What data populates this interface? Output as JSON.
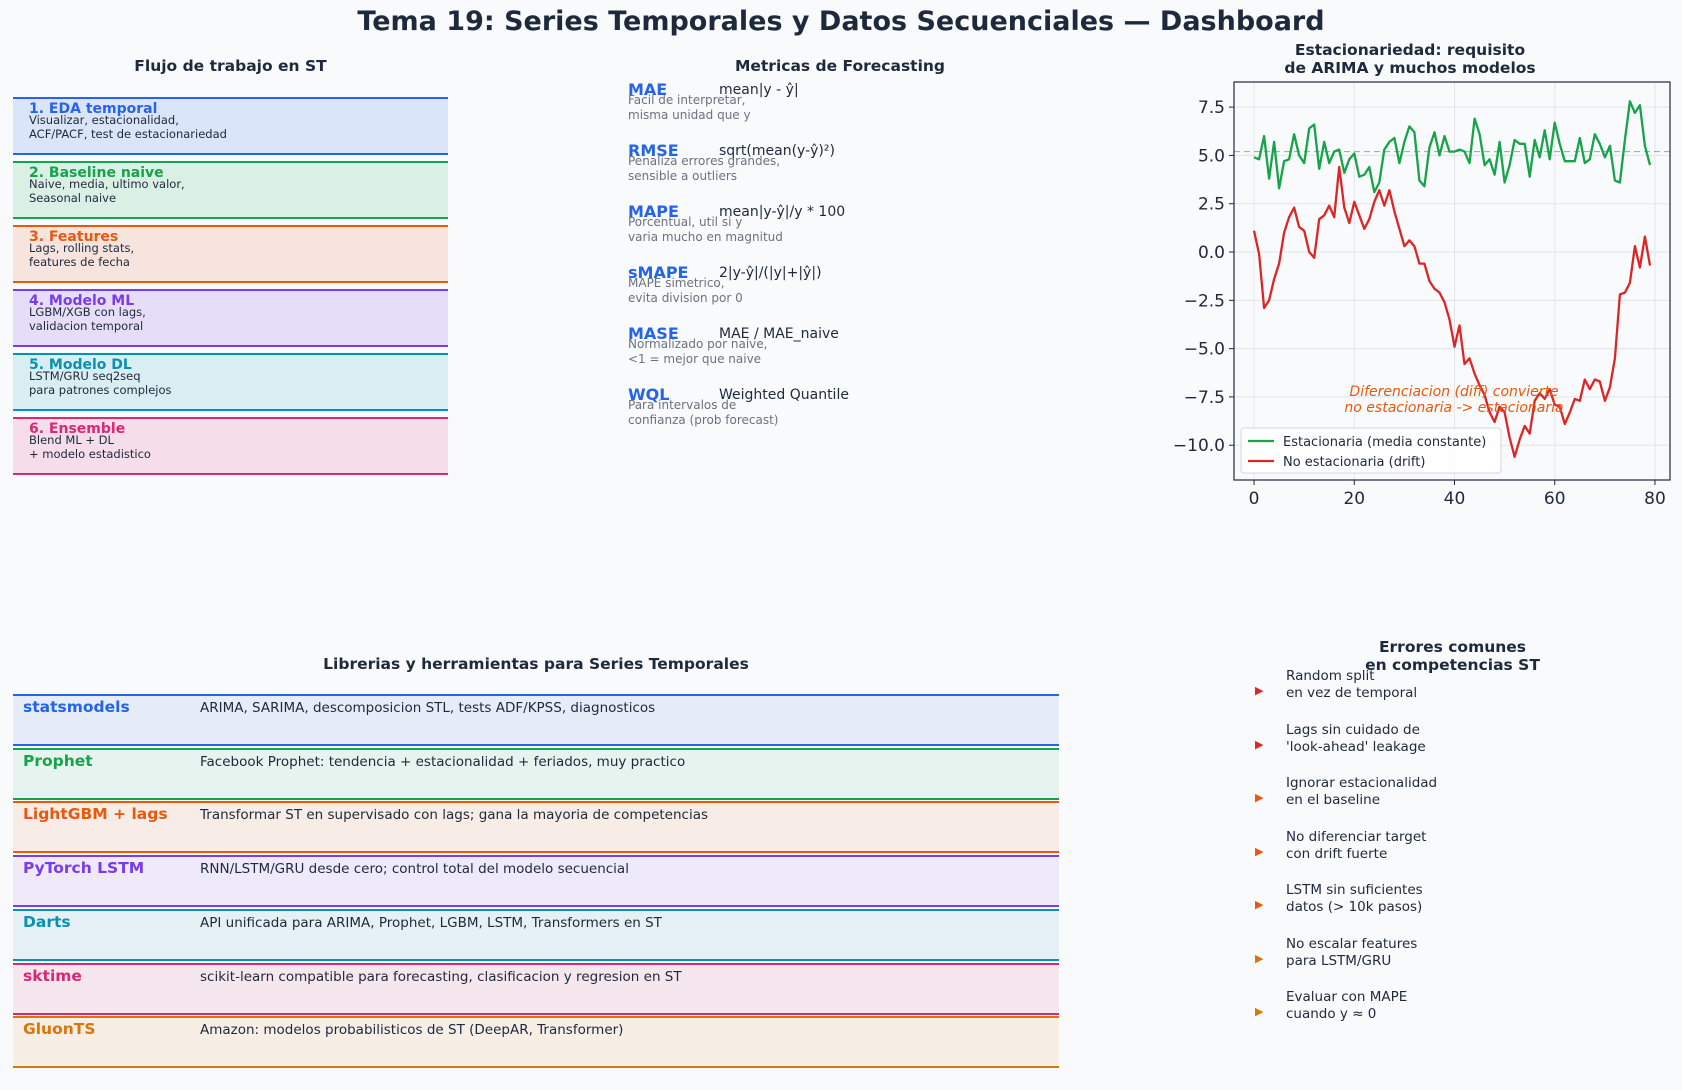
{
  "title": "Tema 19: Series Temporales y Datos Secuenciales — Dashboard",
  "workflow": {
    "title": "Flujo de trabajo en ST",
    "steps": [
      {
        "title": "1. EDA temporal",
        "desc": "Visualizar, estacionalidad,\nACF/PACF, test de estacionariedad",
        "color": "#2563eb",
        "bg": "#dbe5f9"
      },
      {
        "title": "2. Baseline naive",
        "desc": "Naive, media, ultimo valor,\nSeasonal naive",
        "color": "#16a34a",
        "bg": "#dbf0e5"
      },
      {
        "title": "3. Features",
        "desc": "Lags, rolling stats,\nfeatures de fecha",
        "color": "#ea580c",
        "bg": "#f8e4de"
      },
      {
        "title": "4. Modelo ML",
        "desc": "LGBM/XGB con lags,\nvalidacion temporal",
        "color": "#7c3aed",
        "bg": "#e6def9"
      },
      {
        "title": "5. Modelo DL",
        "desc": "LSTM/GRU seq2seq\npara patrones complejos",
        "color": "#0891b2",
        "bg": "#d9eef2"
      },
      {
        "title": "6. Ensemble",
        "desc": "Blend ML + DL\n+ modelo estadistico",
        "color": "#db2777",
        "bg": "#f5dde9"
      }
    ]
  },
  "metrics": {
    "title": "Metricas de Forecasting",
    "items": [
      {
        "name": "MAE",
        "formula": "mean|y - ŷ|",
        "desc": "Facil de interpretar,\nmisma unidad que y"
      },
      {
        "name": "RMSE",
        "formula": "sqrt(mean(y-ŷ)²)",
        "desc": "Penaliza errores grandes,\nsensible a outliers"
      },
      {
        "name": "MAPE",
        "formula": "mean|y-ŷ|/y * 100",
        "desc": "Porcentual, util si y\nvaria mucho en magnitud"
      },
      {
        "name": "sMAPE",
        "formula": "2|y-ŷ|/(|y|+|ŷ|)",
        "desc": "MAPE simetrico,\nevita division por 0"
      },
      {
        "name": "MASE",
        "formula": "MAE / MAE_naive",
        "desc": "Normalizado por naive,\n<1 = mejor que naive"
      },
      {
        "name": "WQL",
        "formula": "Weighted Quantile",
        "desc": "Para intervalos de\nconfianza (prob forecast)"
      }
    ]
  },
  "chart_data": {
    "type": "line",
    "title": "Estacionariedad: requisito\nde ARIMA y muchos modelos",
    "xlim": [
      -4,
      83
    ],
    "ylim": [
      -11.8,
      8.8
    ],
    "xticks": [
      0,
      20,
      40,
      60,
      80
    ],
    "yticks": [
      7.5,
      5.0,
      2.5,
      0.0,
      -2.5,
      -5.0,
      -7.5,
      -10.0
    ],
    "ytick_labels": [
      "7.5",
      "5.0",
      "2.5",
      "0.0",
      "−2.5",
      "−5.0",
      "−7.5",
      "−10.0"
    ],
    "grid": true,
    "legend": "bottom-left",
    "hline": {
      "y": 5.2,
      "color": "#16a34a"
    },
    "annotation": "Diferenciacion (diff) convierte\nno estacionaria -> estacionaria",
    "annotation_color": "#ea580c",
    "series": [
      {
        "name": "Estacionaria (media constante)",
        "color": "#16a34a",
        "values": [
          4.9,
          4.8,
          6.0,
          3.8,
          5.7,
          3.3,
          4.7,
          4.8,
          6.1,
          5.0,
          4.6,
          6.4,
          6.6,
          4.3,
          5.7,
          4.6,
          5.2,
          5.3,
          4.1,
          4.8,
          5.1,
          3.9,
          4.0,
          4.4,
          3.1,
          3.6,
          5.3,
          5.7,
          5.9,
          4.6,
          5.7,
          6.5,
          6.2,
          3.7,
          3.4,
          5.4,
          6.2,
          5.0,
          6.0,
          5.2,
          5.2,
          5.3,
          5.2,
          4.6,
          6.9,
          6.1,
          4.5,
          4.8,
          4.0,
          5.7,
          3.6,
          4.5,
          5.8,
          5.6,
          5.6,
          3.9,
          5.8,
          4.9,
          6.3,
          4.8,
          6.7,
          5.6,
          4.7,
          4.7,
          4.7,
          5.9,
          4.6,
          4.8,
          6.1,
          5.6,
          4.9,
          5.5,
          3.7,
          3.6,
          5.8,
          7.8,
          7.2,
          7.6,
          5.5,
          4.5
        ]
      },
      {
        "name": "No estacionaria (drift)",
        "color": "#dc2626",
        "values": [
          1.1,
          -0.1,
          -2.9,
          -2.5,
          -1.4,
          -0.6,
          1.0,
          1.8,
          2.3,
          1.3,
          1.1,
          0.0,
          -0.3,
          1.7,
          1.9,
          2.4,
          1.8,
          4.4,
          2.3,
          1.5,
          2.6,
          1.9,
          1.2,
          1.7,
          2.6,
          3.2,
          2.4,
          3.2,
          2.1,
          1.2,
          0.3,
          0.6,
          0.3,
          -0.6,
          -0.6,
          -1.5,
          -1.9,
          -2.1,
          -2.6,
          -3.5,
          -4.9,
          -3.8,
          -5.8,
          -5.5,
          -6.3,
          -6.9,
          -7.4,
          -8.3,
          -8.8,
          -8.0,
          -8.3,
          -9.6,
          -10.6,
          -9.7,
          -9.0,
          -9.4,
          -7.7,
          -7.3,
          -7.6,
          -7.1,
          -7.9,
          -8.0,
          -8.9,
          -8.3,
          -7.6,
          -7.7,
          -6.6,
          -7.1,
          -6.6,
          -6.7,
          -7.7,
          -7.0,
          -5.5,
          -2.2,
          -2.1,
          -1.6,
          0.3,
          -0.8,
          0.8,
          -0.7
        ]
      }
    ]
  },
  "libraries": {
    "title": "Librerias y herramientas para Series Temporales",
    "items": [
      {
        "name": "statsmodels",
        "desc": "ARIMA, SARIMA, descomposicion STL, tests ADF/KPSS, diagnosticos",
        "color": "#2563eb",
        "bg": "#e6ecf8"
      },
      {
        "name": "Prophet",
        "desc": "Facebook Prophet: tendencia + estacionalidad + feriados, muy practico",
        "color": "#16a34a",
        "bg": "#e6f3ee"
      },
      {
        "name": "LightGBM + lags",
        "desc": "Transformar ST en supervisado con lags; gana la mayoria de competencias",
        "color": "#ea580c",
        "bg": "#f8ece7"
      },
      {
        "name": "PyTorch LSTM",
        "desc": "RNN/LSTM/GRU desde cero; control total del modelo secuencial",
        "color": "#7c3aed",
        "bg": "#eeeaf9"
      },
      {
        "name": "Darts",
        "desc": "API unificada para ARIMA, Prophet, LGBM, LSTM, Transformers en ST",
        "color": "#0891b2",
        "bg": "#e6f1f5"
      },
      {
        "name": "sktime",
        "desc": "scikit-learn compatible para forecasting, clasificacion y regresion en ST",
        "color": "#db2777",
        "bg": "#f6e7ef"
      },
      {
        "name": "GluonTS",
        "desc": "Amazon: modelos probabilisticos de ST (DeepAR, Transformer)",
        "color": "#d97706",
        "bg": "#f7eee6"
      }
    ]
  },
  "errors": {
    "title": "Errores comunes\nen competencias ST",
    "items": [
      {
        "text": "Random split\nen vez de temporal",
        "color": "#dc2626"
      },
      {
        "text": "Lags sin cuidado de\n'look-ahead' leakage",
        "color": "#dc2626"
      },
      {
        "text": "Ignorar estacionalidad\nen el baseline",
        "color": "#ea580c"
      },
      {
        "text": "No diferenciar target\ncon drift fuerte",
        "color": "#ea580c"
      },
      {
        "text": "LSTM sin suficientes\ndatos (> 10k pasos)",
        "color": "#ea580c"
      },
      {
        "text": "No escalar features\npara LSTM/GRU",
        "color": "#d97706"
      },
      {
        "text": "Evaluar con MAPE\ncuando y ≈ 0",
        "color": "#d97706"
      }
    ]
  }
}
